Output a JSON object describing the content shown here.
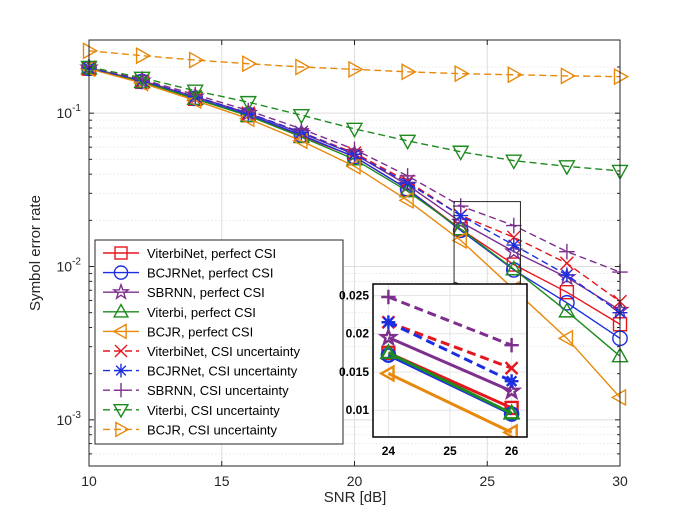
{
  "chart_data": {
    "type": "line",
    "xlabel": "SNR [dB]",
    "ylabel": "Symbol error rate",
    "x": [
      10,
      12,
      14,
      16,
      18,
      20,
      22,
      24,
      26,
      28,
      30
    ],
    "xlim": [
      10,
      30
    ],
    "ylim": [
      0.0005,
      0.3
    ],
    "yscale": "log",
    "grid": true,
    "xticks": [
      10,
      15,
      20,
      25,
      30
    ],
    "xtick_labels": [
      "10",
      "15",
      "20",
      "25",
      "30"
    ],
    "ytick_labels": {
      "main": "10",
      "exp": [
        "-1",
        "-2",
        "-3"
      ]
    },
    "legend_position": "lower-left",
    "series": [
      {
        "name": "ViterbiNet, perfect CSI",
        "color": "#e6161e",
        "dash": "solid",
        "marker": "square",
        "values": [
          0.195,
          0.16,
          0.124,
          0.097,
          0.071,
          0.052,
          0.032,
          0.0175,
          0.0103,
          0.0068,
          0.0042
        ]
      },
      {
        "name": "BCJRNet, perfect CSI",
        "color": "#1c2fe0",
        "dash": "solid",
        "marker": "circle",
        "values": [
          0.196,
          0.161,
          0.125,
          0.098,
          0.072,
          0.052,
          0.032,
          0.0172,
          0.0095,
          0.0058,
          0.0034
        ]
      },
      {
        "name": "SBRNN, perfect CSI",
        "color": "#7e2f8e",
        "dash": "solid",
        "marker": "star",
        "values": [
          0.198,
          0.163,
          0.128,
          0.1,
          0.074,
          0.054,
          0.034,
          0.0195,
          0.0125,
          0.0085,
          0.0052
        ]
      },
      {
        "name": "Viterbi, perfect CSI",
        "color": "#1f8a1f",
        "dash": "solid",
        "marker": "triangle-up",
        "values": [
          0.196,
          0.16,
          0.124,
          0.096,
          0.07,
          0.05,
          0.031,
          0.0175,
          0.0096,
          0.0051,
          0.0026
        ]
      },
      {
        "name": "BCJR, perfect CSI",
        "color": "#e8890c",
        "dash": "solid",
        "marker": "triangle-left",
        "values": [
          0.195,
          0.157,
          0.121,
          0.092,
          0.066,
          0.045,
          0.027,
          0.0148,
          0.0071,
          0.0034,
          0.0014
        ]
      },
      {
        "name": "ViterbiNet, CSI uncertainty",
        "color": "#e6161e",
        "dash": "dash",
        "marker": "x",
        "values": [
          0.197,
          0.163,
          0.128,
          0.1,
          0.075,
          0.055,
          0.036,
          0.0215,
          0.0155,
          0.0105,
          0.0059
        ]
      },
      {
        "name": "BCJRNet, CSI uncertainty",
        "color": "#1c2fe0",
        "dash": "dash",
        "marker": "asterisk",
        "values": [
          0.197,
          0.163,
          0.128,
          0.1,
          0.075,
          0.054,
          0.035,
          0.0215,
          0.0138,
          0.0088,
          0.005
        ]
      },
      {
        "name": "SBRNN, CSI uncertainty",
        "color": "#7e2f8e",
        "dash": "dash",
        "marker": "plus",
        "values": [
          0.2,
          0.166,
          0.132,
          0.104,
          0.079,
          0.058,
          0.039,
          0.0248,
          0.0185,
          0.0125,
          0.0092
        ]
      },
      {
        "name": "Viterbi, CSI uncertainty",
        "color": "#1f8a1f",
        "dash": "dash",
        "marker": "triangle-down",
        "values": [
          0.2,
          0.17,
          0.14,
          0.118,
          0.097,
          0.079,
          0.066,
          0.056,
          0.049,
          0.045,
          0.042
        ]
      },
      {
        "name": "BCJR, CSI uncertainty",
        "color": "#e8890c",
        "dash": "dash",
        "marker": "triangle-right",
        "values": [
          0.255,
          0.237,
          0.222,
          0.21,
          0.2,
          0.193,
          0.186,
          0.181,
          0.178,
          0.175,
          0.173
        ]
      }
    ],
    "inset": {
      "xlim": [
        23.75,
        26.25
      ],
      "ylim": [
        0.0065,
        0.0265
      ],
      "xticks": [
        24,
        25,
        26
      ],
      "xtick_labels": [
        "24",
        "25",
        "26"
      ],
      "yticks": [
        0.01,
        0.015,
        0.02,
        0.025
      ],
      "ytick_labels": [
        "0.01",
        "0.015",
        "0.02",
        "0.025"
      ]
    }
  }
}
